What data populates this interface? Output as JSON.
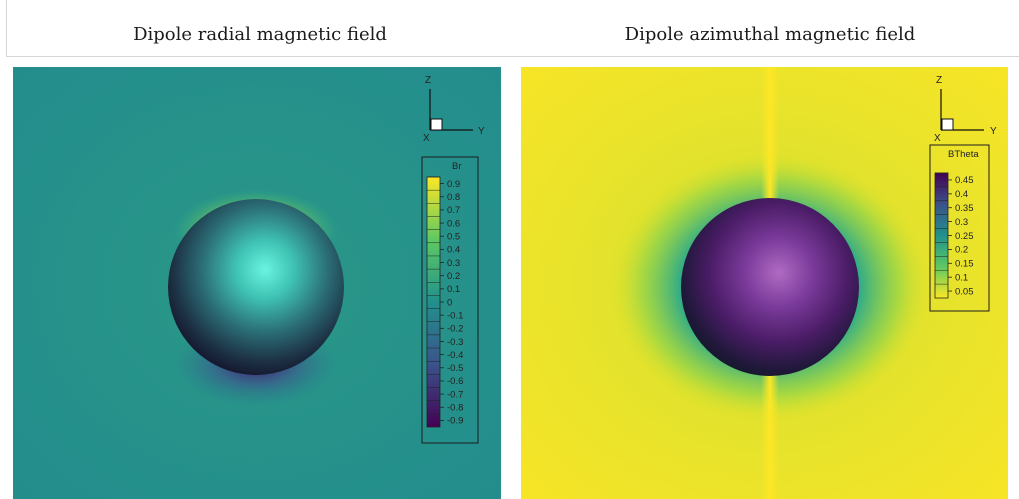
{
  "panels": [
    {
      "title": "Dipole radial magnetic field",
      "legend": {
        "name": "Br",
        "ticks": [
          "0.9",
          "0.8",
          "0.7",
          "0.6",
          "0.5",
          "0.4",
          "0.3",
          "0.2",
          "0.1",
          "0",
          "-0.1",
          "-0.2",
          "-0.3",
          "-0.4",
          "-0.5",
          "-0.6",
          "-0.7",
          "-0.8",
          "-0.9"
        ]
      },
      "axes": {
        "up": "Z",
        "right": "Y",
        "depth": "X"
      },
      "colors": {
        "background": "#26918a",
        "sphere_highlight": "#63f2df"
      }
    },
    {
      "title": "Dipole azimuthal magnetic field",
      "legend": {
        "name": "BTheta",
        "ticks": [
          "0.45",
          "0.4",
          "0.35",
          "0.3",
          "0.25",
          "0.2",
          "0.15",
          "0.1",
          "0.05"
        ]
      },
      "axes": {
        "up": "Z",
        "right": "Y",
        "depth": "X"
      },
      "colors": {
        "background": "#f0e22c",
        "sphere_highlight": "#a965be"
      }
    }
  ]
}
